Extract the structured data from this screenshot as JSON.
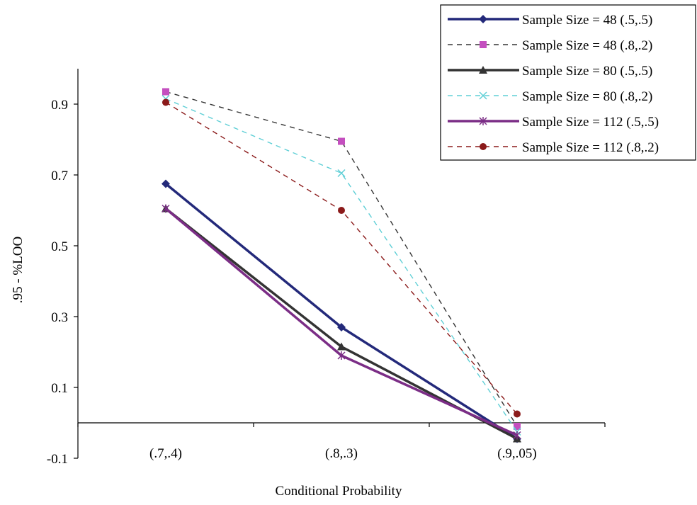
{
  "chart_data": {
    "type": "line",
    "xlabel": "Conditional Probability",
    "ylabel": ".95 - %LOO",
    "categories": [
      "(.7,.4)",
      "(.8,.3)",
      "(.9,.05)"
    ],
    "ylim": [
      -0.1,
      1.0
    ],
    "yticks": [
      "0.9",
      "0.7",
      "0.5",
      "0.3",
      "0.1",
      "-0.1"
    ],
    "ytick_values": [
      0.9,
      0.7,
      0.5,
      0.3,
      0.1,
      -0.1
    ],
    "x_axis_crosses_at": 0,
    "grid": false,
    "legend_position": "top-right",
    "series": [
      {
        "name": "Sample Size = 48 (.5,.5)",
        "values": [
          0.675,
          0.27,
          -0.045
        ],
        "color": "#23297a",
        "dash": "solid",
        "marker": "diamond",
        "weight": "thick"
      },
      {
        "name": "Sample Size = 48 (.8,.2)",
        "values": [
          0.935,
          0.795,
          -0.01
        ],
        "color": "#333333",
        "marker_color": "#c44fbf",
        "dash": "dashed",
        "marker": "square",
        "weight": "thin"
      },
      {
        "name": "Sample Size = 80 (.5,.5)",
        "values": [
          0.605,
          0.215,
          -0.045
        ],
        "color": "#333333",
        "dash": "solid",
        "marker": "triangle",
        "weight": "thick"
      },
      {
        "name": "Sample Size = 80 (.8,.2)",
        "values": [
          0.915,
          0.705,
          -0.025
        ],
        "color": "#5fcfd6",
        "dash": "dashed",
        "marker": "x",
        "weight": "thin"
      },
      {
        "name": "Sample Size = 112 (.5,.5)",
        "values": [
          0.605,
          0.19,
          -0.035
        ],
        "color": "#7b2d86",
        "dash": "solid",
        "marker": "star",
        "weight": "thick"
      },
      {
        "name": "Sample Size = 112 (.8,.2)",
        "values": [
          0.905,
          0.6,
          0.025
        ],
        "color": "#8b1a1a",
        "dash": "dashed",
        "marker": "circle",
        "weight": "thin"
      }
    ]
  }
}
